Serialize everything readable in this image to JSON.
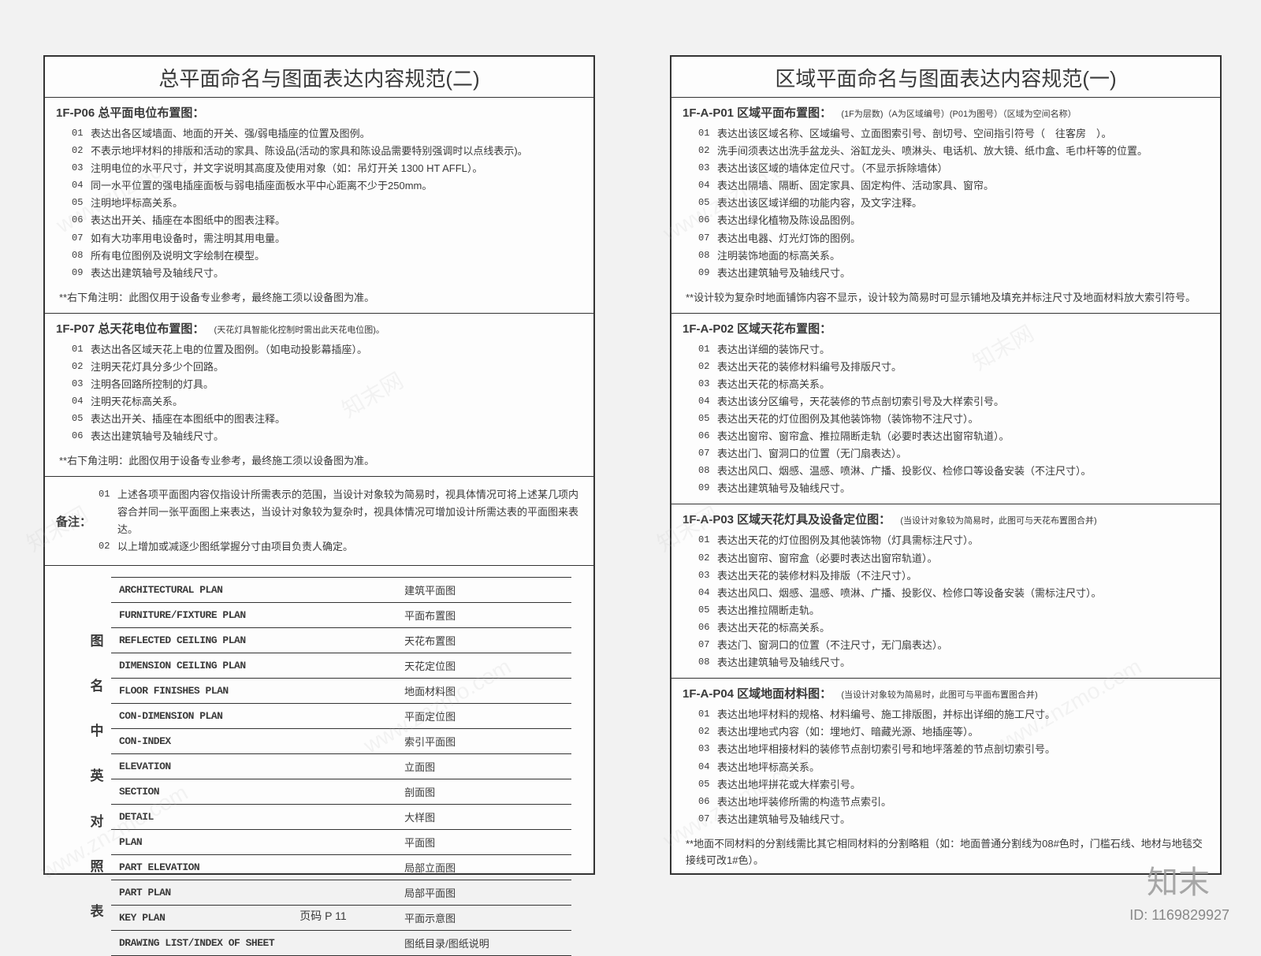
{
  "leftPage": {
    "title": "总平面命名与图面表达内容规范(二)",
    "sections": [
      {
        "heading": "1F-P06 总平面电位布置图：",
        "items": [
          "表达出各区域墙面、地面的开关、强/弱电插座的位置及图例。",
          "不表示地坪材料的排版和活动的家具、陈设品(活动的家具和陈设品需要特别强调时以点线表示)。",
          "注明电位的水平尺寸，并文字说明其高度及使用对象（如：吊灯开关 1300 HT AFFL）。",
          "同一水平位置的强电插座面板与弱电插座面板水平中心距离不少于250mm。",
          "注明地坪标高关系。",
          "表达出开关、插座在本图纸中的图表注释。",
          "如有大功率用电设备时，需注明其用电量。",
          "所有电位图例及说明文字绘制在模型。",
          "表达出建筑轴号及轴线尺寸。"
        ],
        "footnote": "**右下角注明：此图仅用于设备专业参考，最终施工须以设备图为准。"
      },
      {
        "heading": "1F-P07 总天花电位布置图：",
        "headingNote": "(天花灯具智能化控制时需出此天花电位图)。",
        "items": [
          "表达出各区域天花上电的位置及图例。（如电动投影幕插座）。",
          "注明天花灯具分多少个回路。",
          "注明各回路所控制的灯具。",
          "注明天花标高关系。",
          "表达出开关、插座在本图纸中的图表注释。",
          "表达出建筑轴号及轴线尺寸。"
        ],
        "footnote": "**右下角注明：此图仅用于设备专业参考，最终施工须以设备图为准。"
      }
    ],
    "remark": {
      "label": "备注：",
      "items": [
        "上述各项平面图内容仅指设计所需表示的范围，当设计对象较为简易时，视具体情况可将上述某几项内容合并同一张平面图上来表达，当设计对象较为复杂时，视具体情况可增加设计所需达表的平面图来表达。",
        "以上增加或减逐少图纸掌握分寸由项目负责人确定。"
      ]
    },
    "transTable": {
      "vlabel": "图名中英对照表",
      "rows": [
        {
          "en": "ARCHITECTURAL PLAN",
          "cn": "建筑平面图"
        },
        {
          "en": "FURNITURE/FIXTURE PLAN",
          "cn": "平面布置图"
        },
        {
          "en": "REFLECTED CEILING PLAN",
          "cn": "天花布置图"
        },
        {
          "en": "DIMENSION CEILING PLAN",
          "cn": "天花定位图"
        },
        {
          "en": "FLOOR FINISHES PLAN",
          "cn": "地面材料图"
        },
        {
          "en": "CON-DIMENSION PLAN",
          "cn": "平面定位图"
        },
        {
          "en": "CON-INDEX",
          "cn": "索引平面图"
        },
        {
          "en": "ELEVATION",
          "cn": "立面图"
        },
        {
          "en": "SECTION",
          "cn": "剖面图"
        },
        {
          "en": "DETAIL",
          "cn": "大样图"
        },
        {
          "en": "PLAN",
          "cn": "平面图"
        },
        {
          "en": "PART ELEVATION",
          "cn": "局部立面图"
        },
        {
          "en": "PART PLAN",
          "cn": "局部平面图"
        },
        {
          "en": "KEY PLAN",
          "cn": "平面示意图"
        },
        {
          "en": "DRAWING LIST/INDEX OF SHEET",
          "cn": "图纸目录/图纸说明"
        }
      ]
    }
  },
  "rightPage": {
    "title": "区域平面命名与图面表达内容规范(一)",
    "sections": [
      {
        "heading": "1F-A-P01 区域平面布置图：",
        "headingNote": "(1F为层数)（A为区域编号）(P01为图号）（区域为空间名称）",
        "items": [
          "表达出该区域名称、区域编号、立面图索引号、剖切号、空间指引符号（　往客房　）。",
          "洗手间须表达出洗手盆龙头、浴缸龙头、喷淋头、电话机、放大镜、纸巾盒、毛巾杆等的位置。",
          "表达出该区域的墙体定位尺寸。（不显示拆除墙体）",
          "表达出隔墙、隔断、固定家具、固定构件、活动家具、窗帘。",
          "表达出该区域详细的功能内容，及文字注释。",
          "表达出绿化植物及陈设品图例。",
          "表达出电器、灯光灯饰的图例。",
          "注明装饰地面的标高关系。",
          "表达出建筑轴号及轴线尺寸。"
        ],
        "footnote": "**设计较为复杂时地面铺饰内容不显示，设计较为简易时可显示铺地及填充并标注尺寸及地面材料放大索引符号。"
      },
      {
        "heading": "1F-A-P02 区域天花布置图：",
        "items": [
          "表达出详细的装饰尺寸。",
          "表达出天花的装修材料编号及排版尺寸。",
          "表达出天花的标高关系。",
          "表达出该分区编号，天花装修的节点剖切索引号及大样索引号。",
          "表达出天花的灯位图例及其他装饰物（装饰物不注尺寸）。",
          "表达出窗帘、窗帘盒、推拉隔断走轨（必要时表达出窗帘轨道）。",
          "表达出门、窗洞口的位置（无门扇表达）。",
          "表达出风口、烟感、温感、喷淋、广播、投影仪、检修口等设备安装（不注尺寸）。",
          "表达出建筑轴号及轴线尺寸。"
        ]
      },
      {
        "heading": "1F-A-P03 区域天花灯具及设备定位图：",
        "headingNote": "(当设计对象较为简易时，此图可与天花布置图合并)",
        "items": [
          "表达出天花的灯位图例及其他装饰物（灯具需标注尺寸）。",
          "表达出窗帘、窗帘盒（必要时表达出窗帘轨道）。",
          "表达出天花的装修材料及排版（不注尺寸）。",
          "表达出风口、烟感、温感、喷淋、广播、投影仪、检修口等设备安装（需标注尺寸）。",
          "表达出推拉隔断走轨。",
          "表达出天花的标高关系。",
          "表达门、窗洞口的位置（不注尺寸，无门扇表达）。",
          "表达出建筑轴号及轴线尺寸。"
        ]
      },
      {
        "heading": "1F-A-P04 区域地面材料图：",
        "headingNote": "(当设计对象较为简易时，此图可与平面布置图合并)",
        "items": [
          "表达出地坪材料的规格、材料编号、施工排版图，并标出详细的施工尺寸。",
          "表达出埋地式内容（如：埋地灯、暗藏光源、地插座等）。",
          "表达出地坪相接材料的装修节点剖切索引号和地坪落差的节点剖切索引号。",
          "表达出地坪标高关系。",
          "表达出地坪拼花或大样索引号。",
          "表达出地坪装修所需的构造节点索引。",
          "表达出建筑轴号及轴线尺寸。"
        ],
        "footnote": "**地面不同材料的分割线需比其它相同材料的分割略粗（如：地面普通分割线为08#色时，门槛石线、地材与地毯交接线可改1#色）。"
      }
    ]
  },
  "footer": {
    "pageLabel": "页码  P 11",
    "id": "ID: 1169829927"
  },
  "watermarkLogo": "知末",
  "watermarks": [
    "www.znzmo.com",
    "知末网",
    "www.znzmo.com",
    "知末网",
    "www.znzmo.com"
  ]
}
